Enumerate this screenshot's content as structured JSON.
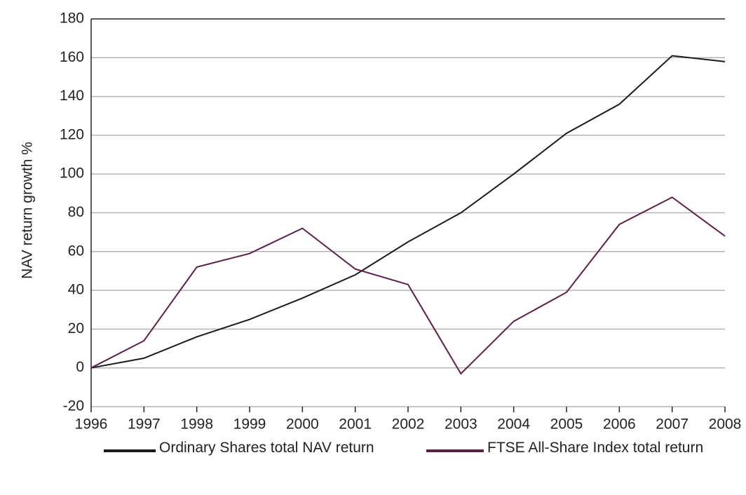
{
  "chart_data": {
    "type": "line",
    "y_label": "NAV return growth %",
    "x": [
      1996,
      1997,
      1998,
      1999,
      2000,
      2001,
      2002,
      2003,
      2004,
      2005,
      2006,
      2007,
      2008
    ],
    "series": [
      {
        "name": "Ordinary Shares total NAV return",
        "color": "#1a1a1a",
        "values": [
          0,
          5,
          16,
          25,
          36,
          48,
          65,
          80,
          100,
          121,
          136,
          161,
          158
        ]
      },
      {
        "name": "FTSE All-Share Index total return",
        "color": "#5c1f4a",
        "values": [
          0,
          14,
          52,
          59,
          72,
          51,
          43,
          -3,
          24,
          39,
          74,
          88,
          68
        ]
      }
    ],
    "xlim": [
      1996,
      2008
    ],
    "xticks": [
      1996,
      1997,
      1998,
      1999,
      2000,
      2001,
      2002,
      2003,
      2004,
      2005,
      2006,
      2007,
      2008
    ],
    "ylim": [
      -20,
      180
    ],
    "yticks": [
      -20,
      0,
      20,
      40,
      60,
      80,
      100,
      120,
      140,
      160,
      180
    ],
    "grid": true,
    "legend": "bottom"
  }
}
